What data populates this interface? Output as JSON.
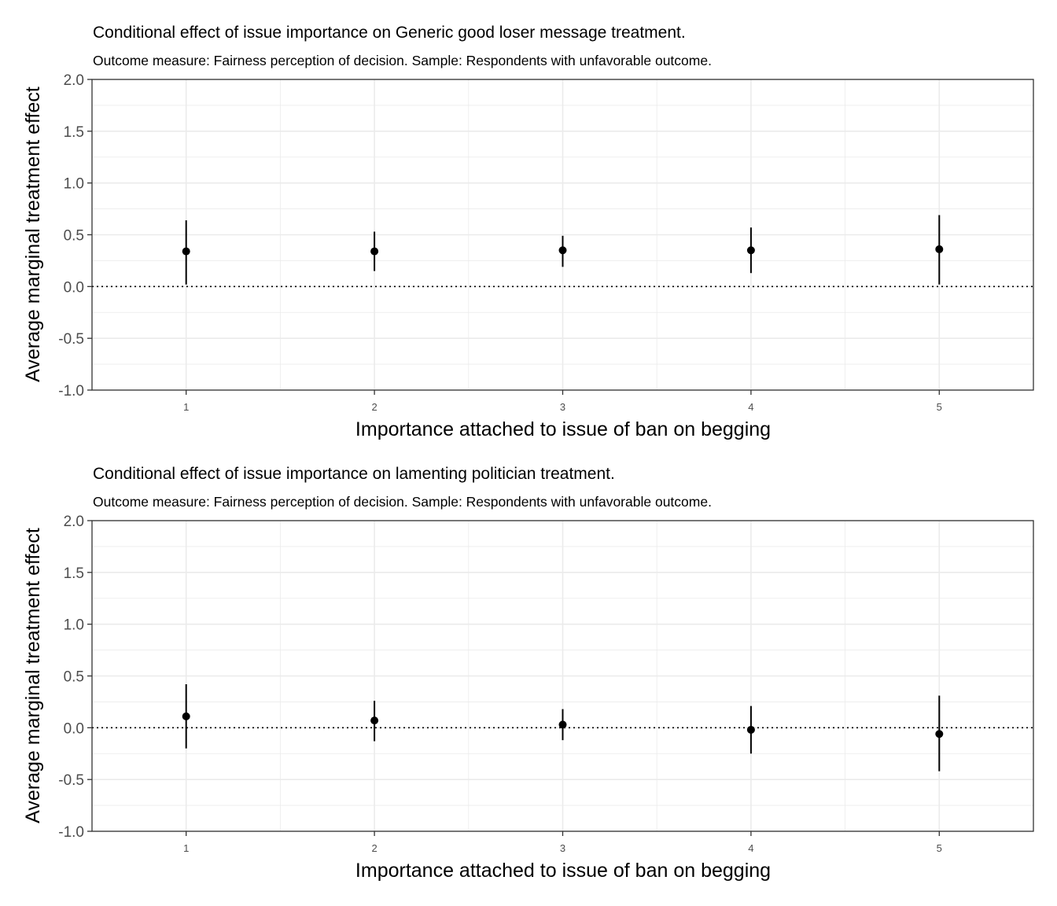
{
  "chart_data": [
    {
      "type": "errorbar",
      "title": "Conditional effect of issue importance on Generic good loser message treatment.",
      "subtitle": "Outcome measure: Fairness perception of decision. Sample: Respondents with unfavorable outcome.",
      "xlabel": "Importance attached to issue of ban on begging",
      "ylabel": "Average marginal treatment effect",
      "x": [
        1,
        2,
        3,
        4,
        5
      ],
      "x_tick_labels": [
        "1",
        "2",
        "3",
        "4",
        "5"
      ],
      "y": [
        0.34,
        0.34,
        0.35,
        0.35,
        0.36
      ],
      "ci_low": [
        0.02,
        0.15,
        0.19,
        0.13,
        0.02
      ],
      "ci_high": [
        0.64,
        0.53,
        0.49,
        0.57,
        0.69
      ],
      "xlim": [
        0.5,
        5.5
      ],
      "ylim": [
        -1.0,
        2.0
      ],
      "y_ticks": [
        -1.0,
        -0.5,
        0.0,
        0.5,
        1.0,
        1.5,
        2.0
      ],
      "y_tick_labels": [
        "-1.0",
        "-0.5",
        "0.0",
        "0.5",
        "1.0",
        "1.5",
        "2.0"
      ],
      "reference_line": {
        "y": 0,
        "style": "dotted"
      },
      "grid": true,
      "colors": {
        "points": "#000000",
        "grid": "#ebebeb",
        "border": "#333333"
      }
    },
    {
      "type": "errorbar",
      "title": "Conditional effect of issue importance on lamenting politician treatment.",
      "subtitle": "Outcome measure: Fairness perception of decision. Sample: Respondents with unfavorable outcome.",
      "xlabel": "Importance attached to issue of ban on begging",
      "ylabel": "Average marginal treatment effect",
      "x": [
        1,
        2,
        3,
        4,
        5
      ],
      "x_tick_labels": [
        "1",
        "2",
        "3",
        "4",
        "5"
      ],
      "y": [
        0.11,
        0.07,
        0.03,
        -0.02,
        -0.06
      ],
      "ci_low": [
        -0.2,
        -0.13,
        -0.12,
        -0.25,
        -0.42
      ],
      "ci_high": [
        0.42,
        0.26,
        0.18,
        0.21,
        0.31
      ],
      "xlim": [
        0.5,
        5.5
      ],
      "ylim": [
        -1.0,
        2.0
      ],
      "y_ticks": [
        -1.0,
        -0.5,
        0.0,
        0.5,
        1.0,
        1.5,
        2.0
      ],
      "y_tick_labels": [
        "-1.0",
        "-0.5",
        "0.0",
        "0.5",
        "1.0",
        "1.5",
        "2.0"
      ],
      "reference_line": {
        "y": 0,
        "style": "dotted"
      },
      "grid": true,
      "colors": {
        "points": "#000000",
        "grid": "#ebebeb",
        "border": "#333333"
      }
    }
  ]
}
